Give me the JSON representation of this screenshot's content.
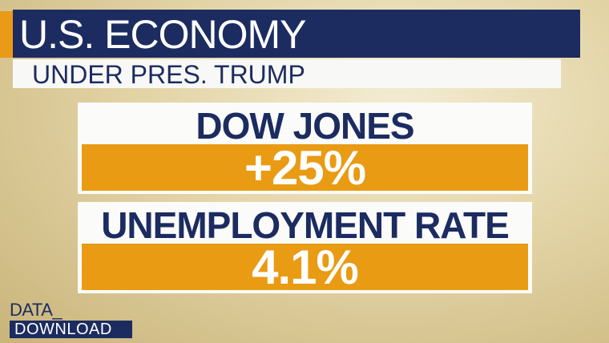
{
  "header": {
    "title": "U.S. ECONOMY",
    "subtitle": "UNDER PRES. TRUMP"
  },
  "stats": [
    {
      "label": "DOW JONES",
      "value": "+25%"
    },
    {
      "label": "UNEMPLOYMENT RATE",
      "value": "4.1%"
    }
  ],
  "footer": {
    "line1": "DATA_",
    "line2": "DOWNLOAD"
  }
}
